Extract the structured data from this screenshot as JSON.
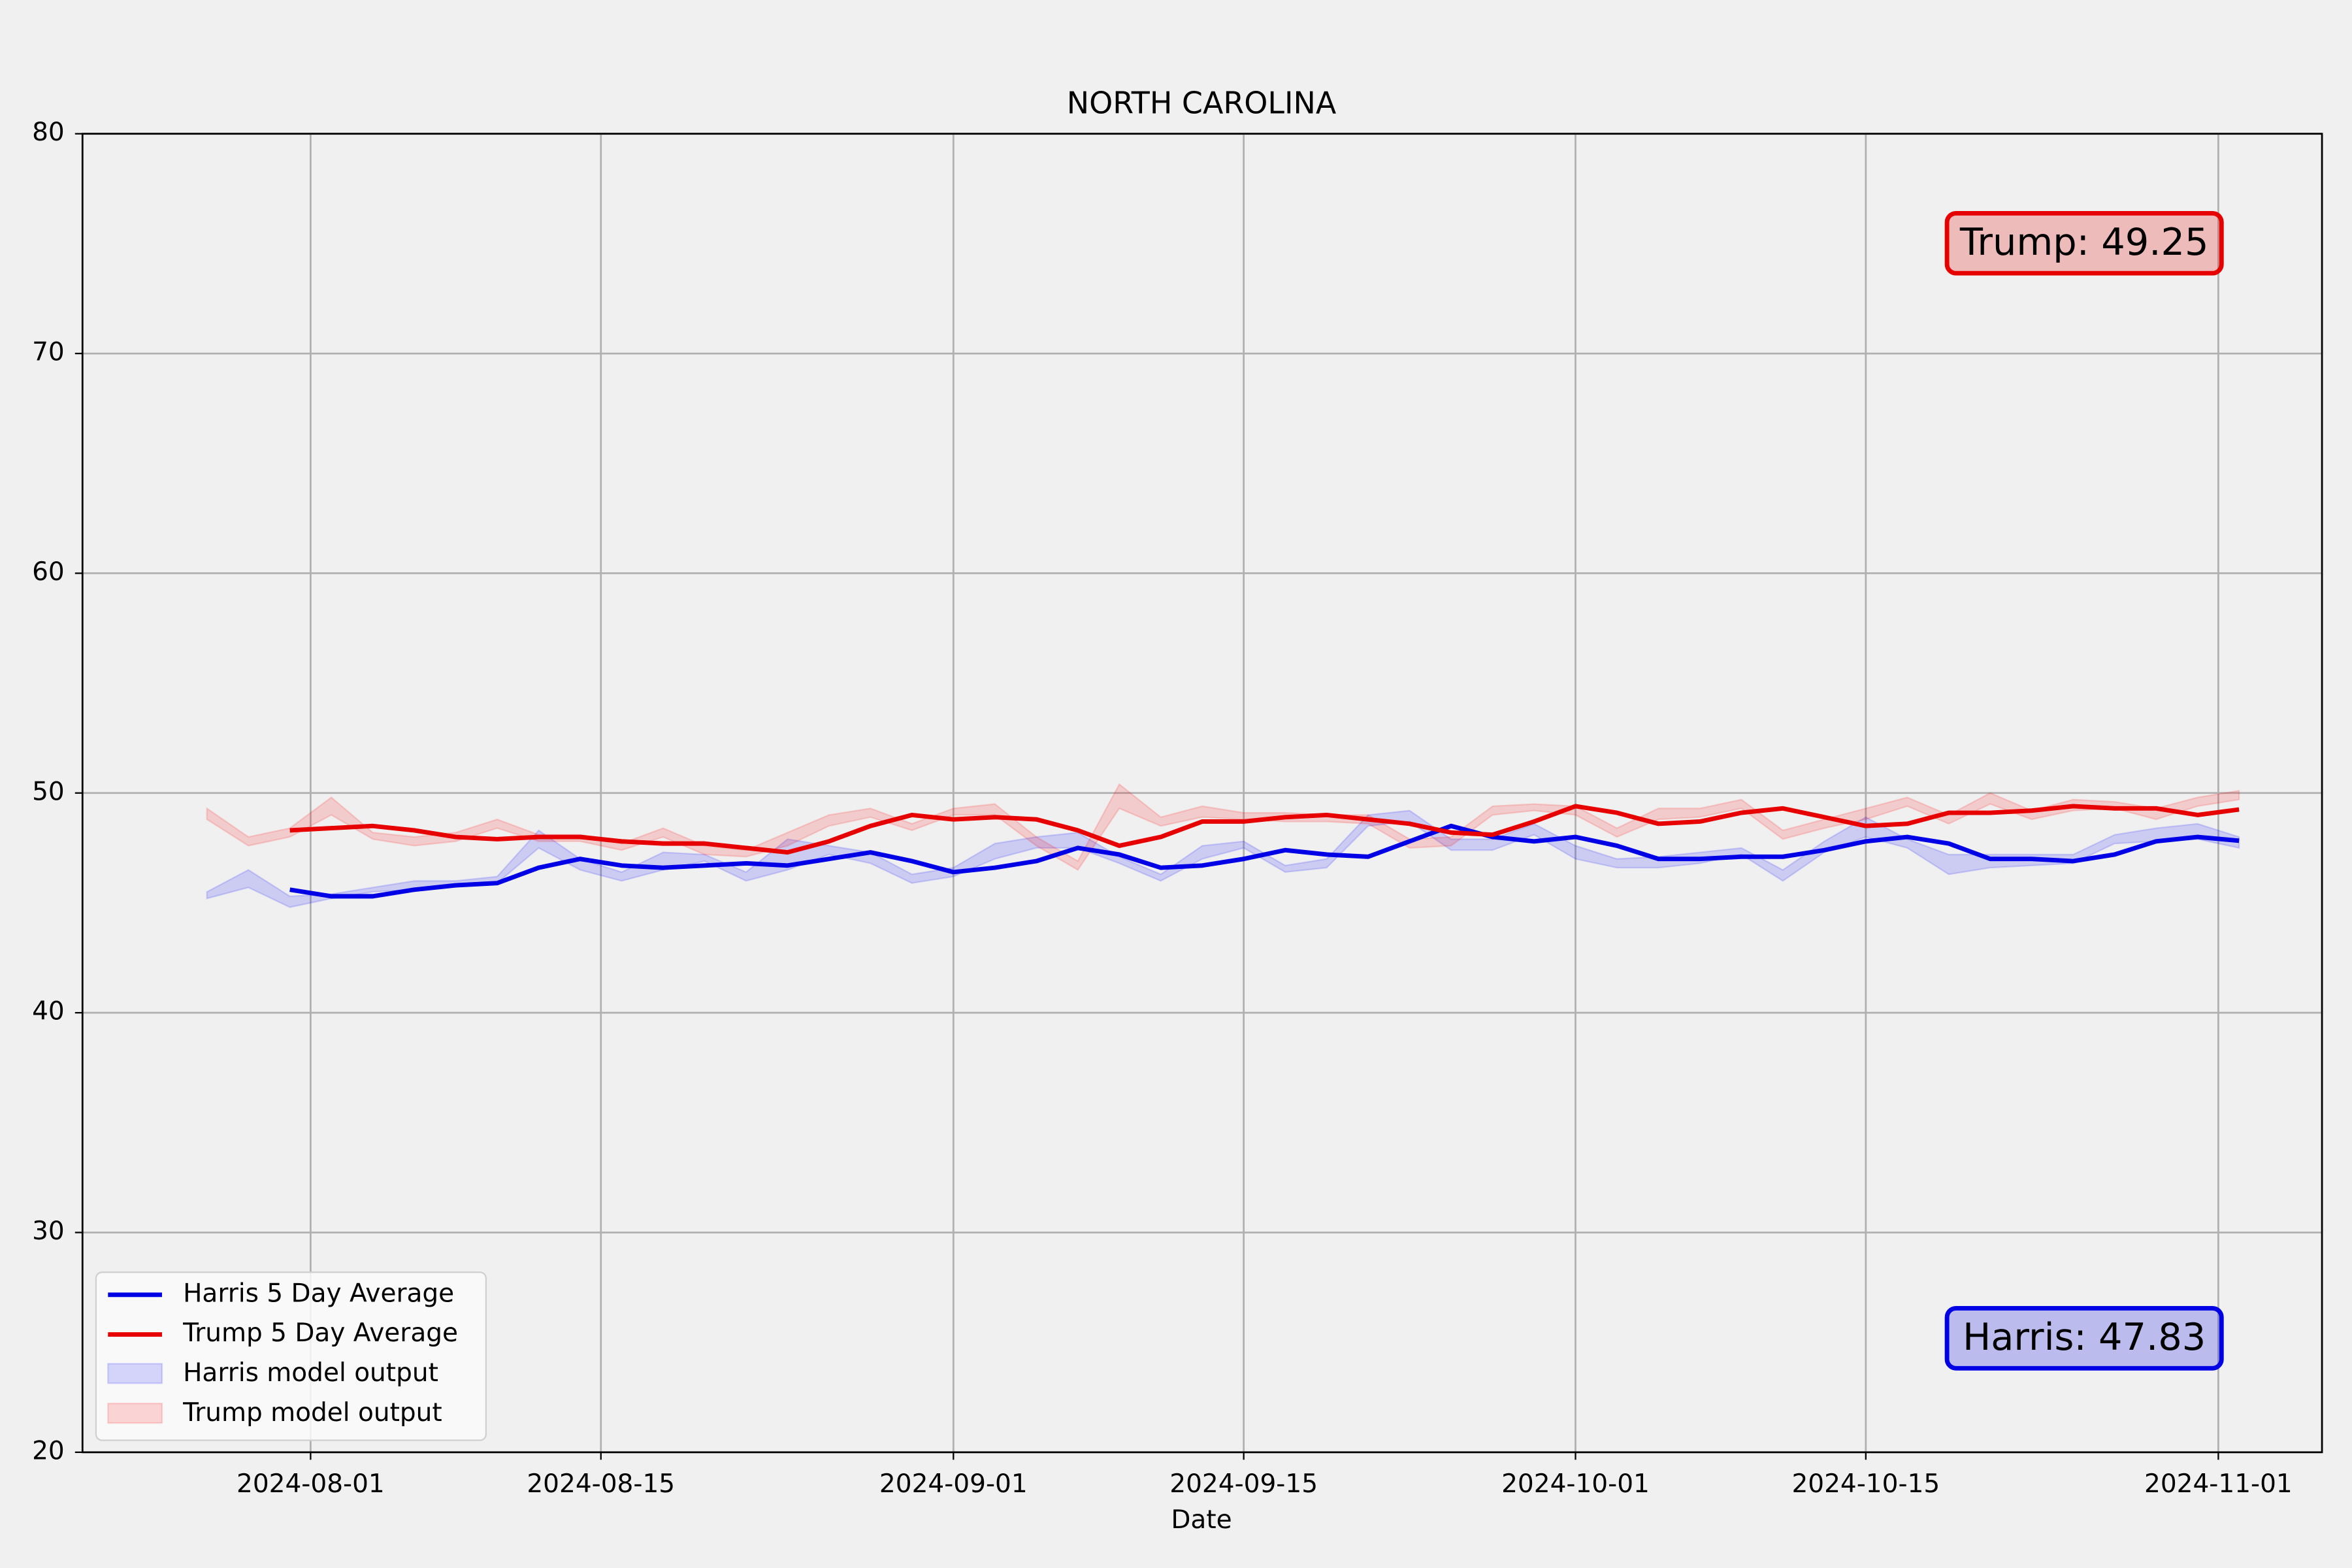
{
  "chart_data": {
    "type": "line",
    "title": "NORTH CAROLINA",
    "x_label": "Date",
    "x": [
      "2024-07-27",
      "2024-07-29",
      "2024-07-31",
      "2024-08-02",
      "2024-08-04",
      "2024-08-06",
      "2024-08-08",
      "2024-08-10",
      "2024-08-12",
      "2024-08-14",
      "2024-08-16",
      "2024-08-18",
      "2024-08-20",
      "2024-08-22",
      "2024-08-24",
      "2024-08-26",
      "2024-08-28",
      "2024-08-30",
      "2024-09-01",
      "2024-09-03",
      "2024-09-05",
      "2024-09-07",
      "2024-09-09",
      "2024-09-11",
      "2024-09-13",
      "2024-09-15",
      "2024-09-17",
      "2024-09-19",
      "2024-09-21",
      "2024-09-23",
      "2024-09-25",
      "2024-09-27",
      "2024-09-29",
      "2024-10-01",
      "2024-10-03",
      "2024-10-05",
      "2024-10-07",
      "2024-10-09",
      "2024-10-11",
      "2024-10-13",
      "2024-10-15",
      "2024-10-17",
      "2024-10-19",
      "2024-10-21",
      "2024-10-23",
      "2024-10-25",
      "2024-10-27",
      "2024-10-29",
      "2024-10-31",
      "2024-11-02"
    ],
    "series": [
      {
        "name": "Harris 5 Day Average",
        "type": "line",
        "color": "#0000e6",
        "values": [
          null,
          null,
          45.6,
          45.3,
          45.3,
          45.6,
          45.8,
          45.9,
          46.6,
          47.0,
          46.7,
          46.6,
          46.7,
          46.8,
          46.7,
          47.0,
          47.3,
          46.9,
          46.4,
          46.6,
          46.9,
          47.5,
          47.2,
          46.6,
          46.7,
          47.0,
          47.4,
          47.2,
          47.1,
          47.8,
          48.5,
          48.0,
          47.8,
          48.0,
          47.6,
          47.0,
          47.0,
          47.1,
          47.1,
          47.4,
          47.8,
          48.0,
          47.7,
          47.0,
          47.0,
          46.9,
          47.2,
          47.8,
          48.0,
          47.83
        ]
      },
      {
        "name": "Trump 5 Day Average",
        "type": "line",
        "color": "#e60000",
        "values": [
          null,
          null,
          48.3,
          48.4,
          48.5,
          48.3,
          48.0,
          47.9,
          48.0,
          48.0,
          47.8,
          47.7,
          47.7,
          47.5,
          47.3,
          47.8,
          48.5,
          49.0,
          48.8,
          48.9,
          48.8,
          48.3,
          47.6,
          48.0,
          48.7,
          48.7,
          48.9,
          49.0,
          48.8,
          48.6,
          48.2,
          48.1,
          48.7,
          49.4,
          49.1,
          48.6,
          48.7,
          49.1,
          49.3,
          48.9,
          48.5,
          48.6,
          49.1,
          49.1,
          49.2,
          49.4,
          49.3,
          49.3,
          49.0,
          49.25
        ]
      },
      {
        "name": "Harris model output",
        "type": "band",
        "color": "#0000ff",
        "alpha": 0.15,
        "lower": [
          45.2,
          45.7,
          44.8,
          45.2,
          45.5,
          45.6,
          45.8,
          45.9,
          47.5,
          46.5,
          46.0,
          46.5,
          46.9,
          46.0,
          46.5,
          47.2,
          46.8,
          45.9,
          46.2,
          47.0,
          47.5,
          47.5,
          46.8,
          46.0,
          47.0,
          47.5,
          46.4,
          46.6,
          48.5,
          48.7,
          47.4,
          47.4,
          48.1,
          47.0,
          46.6,
          46.6,
          46.8,
          47.2,
          46.0,
          47.3,
          48.0,
          47.5,
          46.3,
          46.6,
          46.7,
          46.8,
          47.7,
          47.8,
          47.9,
          47.5
        ],
        "upper": [
          45.5,
          46.5,
          45.3,
          45.4,
          45.7,
          46.0,
          46.0,
          46.2,
          48.3,
          47.0,
          46.4,
          47.3,
          47.2,
          46.4,
          47.9,
          47.6,
          47.3,
          46.3,
          46.6,
          47.7,
          48.0,
          48.2,
          47.1,
          46.3,
          47.6,
          47.8,
          46.7,
          47.0,
          49.0,
          49.2,
          47.9,
          47.9,
          48.6,
          47.6,
          47.0,
          47.1,
          47.3,
          47.5,
          46.5,
          47.8,
          48.9,
          47.9,
          47.2,
          47.2,
          47.2,
          47.2,
          48.1,
          48.4,
          48.6,
          48.0
        ]
      },
      {
        "name": "Trump model output",
        "type": "band",
        "color": "#ff0000",
        "alpha": 0.15,
        "lower": [
          48.8,
          47.6,
          48.0,
          49.0,
          47.9,
          47.6,
          47.8,
          48.4,
          47.8,
          47.8,
          47.4,
          48.0,
          47.2,
          47.1,
          47.6,
          48.5,
          48.9,
          48.3,
          49.0,
          49.0,
          47.6,
          46.5,
          49.3,
          48.5,
          48.9,
          48.8,
          48.7,
          48.7,
          48.6,
          47.5,
          47.6,
          49.0,
          49.2,
          49.0,
          48.0,
          48.8,
          48.9,
          49.3,
          47.9,
          48.4,
          48.8,
          49.4,
          48.6,
          49.5,
          48.8,
          49.2,
          49.3,
          48.8,
          49.4,
          49.7
        ],
        "upper": [
          49.3,
          48.0,
          48.4,
          49.8,
          48.2,
          48.0,
          48.2,
          48.8,
          48.1,
          48.1,
          47.7,
          48.4,
          47.6,
          47.4,
          48.2,
          49.0,
          49.3,
          48.6,
          49.3,
          49.5,
          48.0,
          46.9,
          50.4,
          48.9,
          49.4,
          49.1,
          49.1,
          49.0,
          49.0,
          47.9,
          48.0,
          49.4,
          49.5,
          49.4,
          48.4,
          49.3,
          49.3,
          49.7,
          48.3,
          48.8,
          49.3,
          49.8,
          49.0,
          50.0,
          49.2,
          49.7,
          49.6,
          49.3,
          49.8,
          50.1
        ]
      }
    ],
    "xlim": [
      "2024-07-21",
      "2024-11-06"
    ],
    "xticks": [
      "2024-08-01",
      "2024-08-15",
      "2024-09-01",
      "2024-09-15",
      "2024-10-01",
      "2024-10-15",
      "2024-11-01"
    ],
    "ylim": [
      20,
      80
    ],
    "yticks": [
      20,
      30,
      40,
      50,
      60,
      70,
      80
    ],
    "grid": true,
    "legend": "lower left",
    "annotations": [
      {
        "text": "Trump: 49.25",
        "color": "#e60000",
        "corner": "upper right"
      },
      {
        "text": "Harris: 47.83",
        "color": "#0000e6",
        "corner": "lower right"
      }
    ]
  }
}
